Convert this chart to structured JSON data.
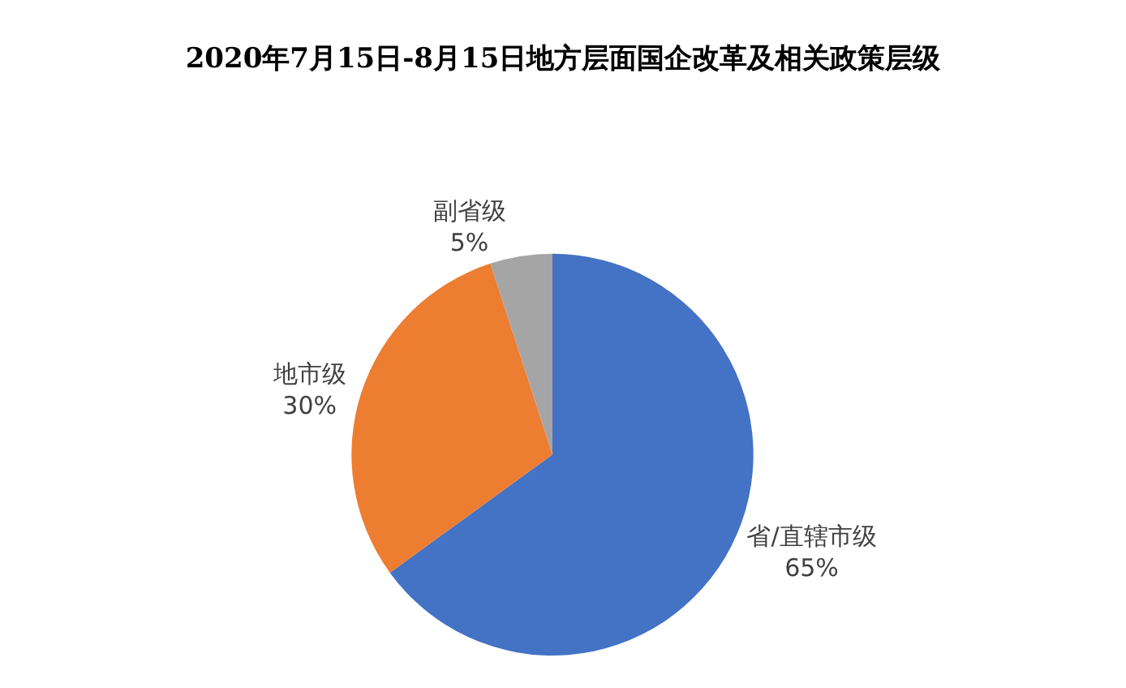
{
  "chart_data": {
    "type": "pie",
    "title": "2020年7月15日-8月15日地方层面国企改革及相关政策层级",
    "categories": [
      "省/直辖市级",
      "地市级",
      "副省级"
    ],
    "values": [
      65,
      30,
      5
    ],
    "value_labels": [
      "65%",
      "30%",
      "5%"
    ],
    "colors": [
      "#4472c4",
      "#ed7d31",
      "#a5a5a5"
    ],
    "legend": false
  }
}
